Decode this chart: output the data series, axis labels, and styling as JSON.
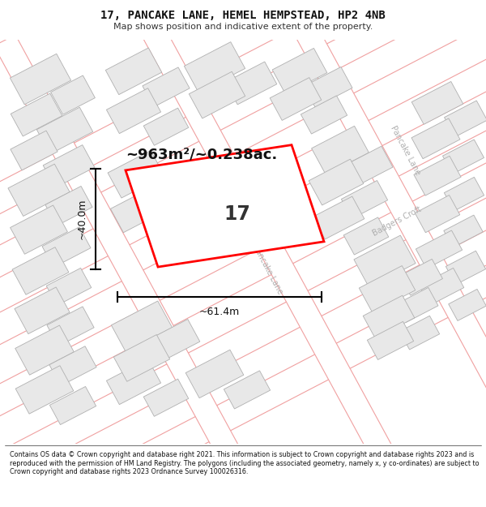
{
  "title": "17, PANCAKE LANE, HEMEL HEMPSTEAD, HP2 4NB",
  "subtitle": "Map shows position and indicative extent of the property.",
  "footer": "Contains OS data © Crown copyright and database right 2021. This information is subject to Crown copyright and database rights 2023 and is reproduced with the permission of HM Land Registry. The polygons (including the associated geometry, namely x, y co-ordinates) are subject to Crown copyright and database rights 2023 Ordnance Survey 100026316.",
  "area_label": "~963m²/~0.238ac.",
  "number_label": "17",
  "width_label": "~61.4m",
  "height_label": "~40.0m",
  "bg_color": "#ffffff",
  "road_line_color": "#f0a0a0",
  "building_fill": "#e8e8e8",
  "building_edge": "#b0b0b0",
  "plot_color": "#ff0000",
  "figsize": [
    6.0,
    6.25
  ],
  "dpi": 100
}
